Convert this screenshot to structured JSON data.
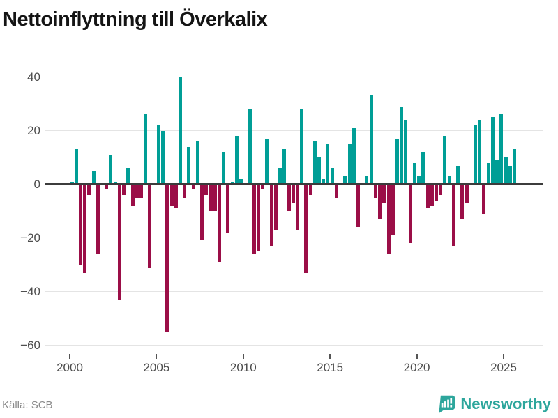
{
  "title": "Nettoinflyttning till Överkalix",
  "source": "Källa: SCB",
  "brand": {
    "name": "Newsworthy",
    "icon": "newsworthy-bar-chart-bubble-icon",
    "color": "#2da69c"
  },
  "chart_data": {
    "type": "bar",
    "title": "Nettoinflyttning till Överkalix",
    "period": "quarterly",
    "start": "2000-Q1",
    "end": "2025-Q3",
    "xlabel": "",
    "ylabel": "",
    "ylim": [
      -60,
      40
    ],
    "grid": true,
    "legend": "none",
    "x_tick_labels": [
      "2000",
      "2005",
      "2010",
      "2015",
      "2020",
      "2025"
    ],
    "y_tick_labels": [
      "40",
      "20",
      "0",
      "−20",
      "−40",
      "−60"
    ],
    "y_tick_values": [
      40,
      20,
      0,
      -20,
      -40,
      -60
    ],
    "colors": {
      "positive": "#009e96",
      "negative": "#9b0e47",
      "zero_axis": "#3c3c3c",
      "gridline": "#e4e4e4"
    },
    "values": [
      1,
      13,
      -30,
      -33,
      -4,
      5,
      -26,
      0,
      -2,
      11,
      1,
      -43,
      -4,
      6,
      -8,
      -5,
      -5,
      26,
      -31,
      0,
      22,
      20,
      -55,
      -8,
      -9,
      40,
      -5,
      14,
      -2,
      16,
      -21,
      -4,
      -10,
      -10,
      -29,
      12,
      -18,
      1,
      18,
      2,
      0,
      28,
      -26,
      -25,
      -2,
      17,
      -23,
      -17,
      6,
      13,
      -10,
      -7,
      -17,
      28,
      -33,
      -4,
      16,
      10,
      2,
      15,
      6,
      -5,
      0,
      3,
      15,
      21,
      -16,
      0,
      3,
      33,
      -5,
      -13,
      -7,
      -26,
      -19,
      17,
      29,
      24,
      -22,
      8,
      3,
      12,
      -9,
      -8,
      -6,
      -4,
      18,
      3,
      -23,
      7,
      -13,
      -7,
      0,
      22,
      24,
      -11,
      8,
      25,
      9,
      26,
      10,
      7,
      13
    ]
  }
}
